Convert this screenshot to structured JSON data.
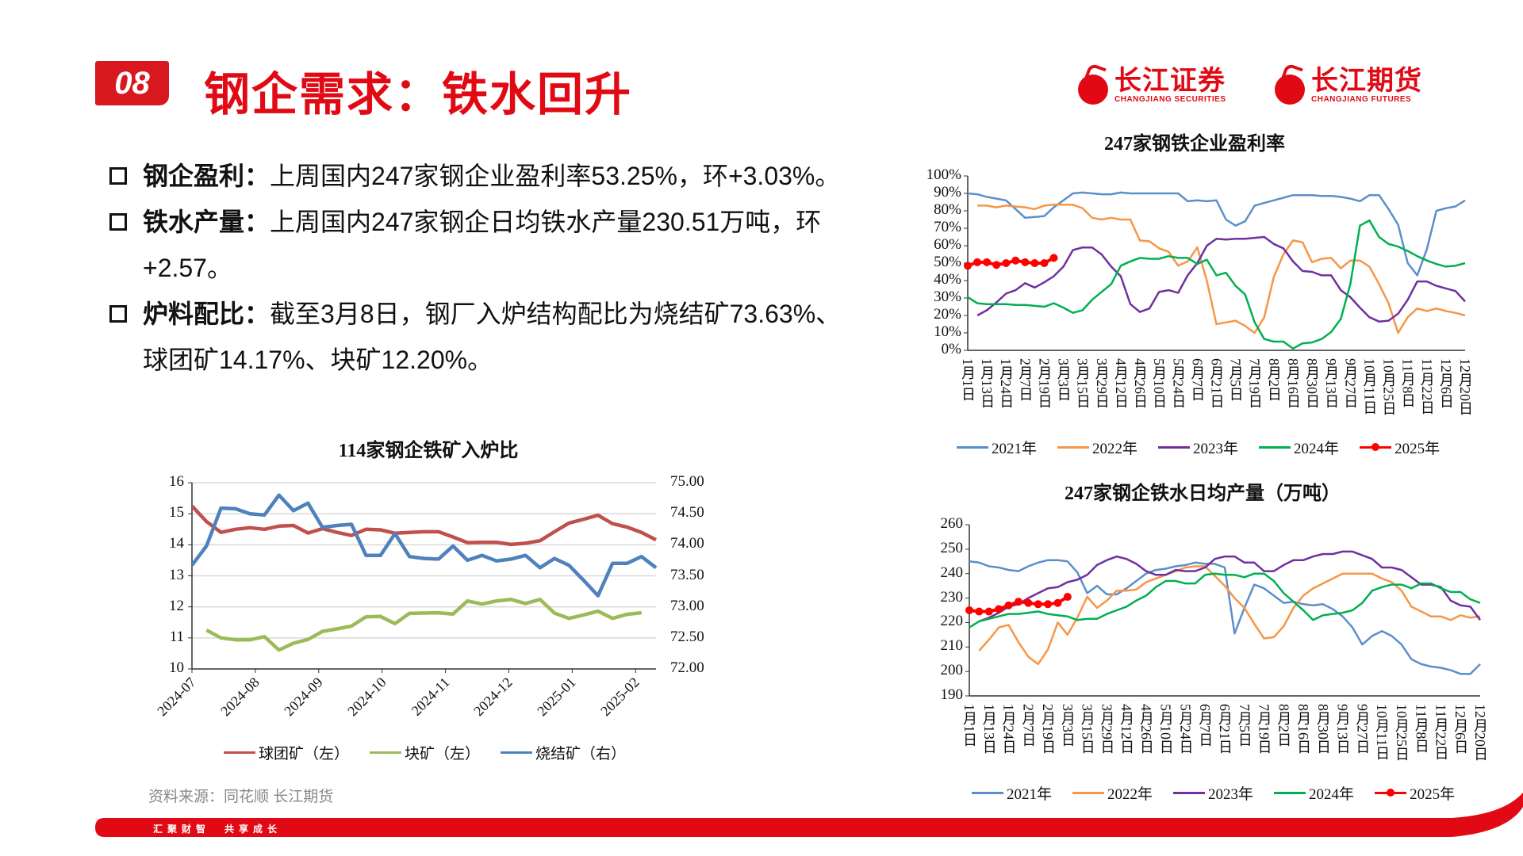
{
  "header": {
    "badge": "08",
    "title": "钢企需求：铁水回升",
    "logos": [
      {
        "cn": "长江证券",
        "en": "CHANGJIANG SECURITIES"
      },
      {
        "cn": "长江期货",
        "en": "CHANGJIANG FUTURES"
      }
    ]
  },
  "bullets": [
    {
      "label": "钢企盈利：",
      "lines": [
        "上周国内247家钢企业盈利率53.25%，环+3.03%。"
      ]
    },
    {
      "label": "铁水产量：",
      "lines": [
        "上周国内247家钢企日均铁水产量230.51万吨，环",
        "+2.57。"
      ]
    },
    {
      "label": "炉料配比：",
      "lines": [
        "截至3月8日，钢厂入炉结构配比为烧结矿73.63%、",
        "球团矿14.17%、块矿12.20%。"
      ]
    }
  ],
  "source": "资料来源：同花顺 长江期货",
  "footer": {
    "slogan": "汇聚财智　共享成长"
  },
  "colors": {
    "brand": "#e10a14",
    "y2021": "#5b8fcb",
    "y2022": "#f79646",
    "y2023": "#7030a0",
    "y2024": "#00b050",
    "y2025": "#ff0000",
    "pellet": "#c0504d",
    "lump": "#9bbb59",
    "sinter": "#4f81bd"
  },
  "chart_data": [
    {
      "type": "line",
      "title": "114家钢企铁矿入炉比",
      "x_tick_labels": [
        "2024-07",
        "2024-08",
        "2024-09",
        "2024-10",
        "2024-11",
        "2024-12",
        "2025-01",
        "2025-02"
      ],
      "ylim_left": [
        10,
        16
      ],
      "yticks_left": [
        "10",
        "11",
        "12",
        "13",
        "14",
        "15",
        "16"
      ],
      "ylim_right": [
        72,
        75
      ],
      "yticks_right": [
        "72.00",
        "72.50",
        "73.00",
        "73.50",
        "74.00",
        "74.50",
        "75.00"
      ],
      "grid": true,
      "legend": "bottom",
      "series": [
        {
          "name": "球团矿（左）",
          "axis": "left",
          "color": "#c0504d",
          "values": [
            15.25,
            14.75,
            14.4,
            14.5,
            14.55,
            14.5,
            14.6,
            14.62,
            14.38,
            14.52,
            14.4,
            14.3,
            14.5,
            14.48,
            14.37,
            14.4,
            14.42,
            14.42,
            14.25,
            14.07,
            14.08,
            14.08,
            14.01,
            14.05,
            14.13,
            14.42,
            14.7,
            14.82,
            14.95,
            14.68,
            14.57,
            14.4,
            14.16
          ]
        },
        {
          "name": "块矿（左）",
          "axis": "left",
          "color": "#9bbb59",
          "values": [
            null,
            11.25,
            11.0,
            10.94,
            10.94,
            11.04,
            10.61,
            10.83,
            10.95,
            11.21,
            11.29,
            11.38,
            11.68,
            11.69,
            11.46,
            11.79,
            11.8,
            11.81,
            11.77,
            12.19,
            12.09,
            12.19,
            12.24,
            12.11,
            12.24,
            11.8,
            11.63,
            11.74,
            11.86,
            11.63,
            11.76,
            11.81,
            null
          ]
        },
        {
          "name": "烧结矿（右）",
          "axis": "right",
          "color": "#4f81bd",
          "values": [
            73.67,
            73.98,
            74.59,
            74.58,
            74.5,
            74.48,
            74.8,
            74.55,
            74.67,
            74.28,
            74.31,
            74.33,
            73.83,
            73.83,
            74.18,
            73.81,
            73.78,
            73.77,
            73.98,
            73.75,
            73.83,
            73.74,
            73.77,
            73.83,
            73.63,
            73.78,
            73.67,
            73.43,
            73.18,
            73.7,
            73.7,
            73.81,
            73.63
          ]
        }
      ]
    },
    {
      "type": "line",
      "title": "247家钢铁企业盈利率",
      "x_tick_labels": [
        "1月1日",
        "1月13日",
        "1月24日",
        "2月7日",
        "2月19日",
        "3月3日",
        "3月15日",
        "3月29日",
        "4月12日",
        "4月26日",
        "5月10日",
        "5月24日",
        "6月7日",
        "6月21日",
        "7月5日",
        "7月19日",
        "8月2日",
        "8月16日",
        "8月30日",
        "9月13日",
        "9月27日",
        "10月11日",
        "10月25日",
        "11月8日",
        "11月22日",
        "12月6日",
        "12月20日"
      ],
      "ylim": [
        0,
        100
      ],
      "yticks": [
        "0%",
        "10%",
        "20%",
        "30%",
        "40%",
        "50%",
        "60%",
        "70%",
        "80%",
        "90%",
        "100%"
      ],
      "grid": false,
      "legend": "bottom",
      "series": [
        {
          "name": "2021年",
          "color": "#5b8fcb",
          "values": [
            90,
            89.5,
            88,
            87,
            86,
            81,
            76,
            76.5,
            77,
            82,
            86,
            90,
            90.5,
            90,
            89.5,
            89.5,
            90.5,
            90,
            90,
            90,
            90,
            90,
            90,
            85.5,
            86,
            85.5,
            86,
            75,
            71.5,
            74,
            83,
            84.5,
            86,
            87.5,
            89,
            89,
            89,
            88.5,
            88.5,
            88,
            87,
            85.5,
            89,
            89,
            81,
            72,
            50,
            43,
            58,
            80,
            81.5,
            82.5,
            86
          ]
        },
        {
          "name": "2022年",
          "color": "#f79646",
          "values": [
            null,
            83,
            83,
            82,
            83,
            82.5,
            82,
            81,
            83,
            83.5,
            83.5,
            83.5,
            81.5,
            76,
            75,
            76,
            75,
            75,
            63,
            62.5,
            58.5,
            56.5,
            48.5,
            51,
            59,
            40,
            15,
            16,
            17,
            14,
            10,
            19,
            42,
            55,
            63,
            62,
            50.5,
            52.5,
            53,
            47,
            51.5,
            51.5,
            48,
            38,
            27,
            10,
            19,
            24,
            22.5,
            24,
            22.5,
            21.5,
            20
          ]
        },
        {
          "name": "2023年",
          "color": "#7030a0",
          "values": [
            null,
            20,
            23,
            27.5,
            32.5,
            34.5,
            38.5,
            36,
            39,
            42.5,
            48,
            57.5,
            59,
            59,
            55,
            48,
            42.5,
            26.5,
            22,
            24,
            33.5,
            34.5,
            33,
            43,
            50,
            60,
            64,
            63.5,
            64,
            64,
            64.5,
            65,
            61,
            58.5,
            51,
            45.5,
            45,
            43,
            43,
            34.5,
            30.5,
            24.5,
            19,
            16.5,
            17,
            21,
            29,
            39.5,
            39.5,
            37,
            35.5,
            34,
            28
          ]
        },
        {
          "name": "2024年",
          "color": "#00b050",
          "values": [
            30.5,
            27,
            26.5,
            26.5,
            26.5,
            26,
            26,
            25.5,
            25,
            27,
            24.5,
            21.5,
            23,
            29,
            33.5,
            38,
            48.5,
            51,
            53,
            52.5,
            52.5,
            54,
            53,
            53,
            49.5,
            52,
            43,
            44.5,
            37,
            32,
            16,
            6.5,
            5,
            5,
            1,
            4,
            4.5,
            6.5,
            10.5,
            18,
            38,
            71.5,
            74.5,
            65,
            61,
            59.5,
            57,
            54,
            51.5,
            49.5,
            48,
            48.5,
            50
          ]
        },
        {
          "name": "2025年",
          "color": "#ff0000",
          "markers": true,
          "values": [
            48.5,
            50.5,
            50.5,
            49,
            50,
            51.5,
            50.5,
            50,
            50,
            53
          ]
        }
      ]
    },
    {
      "type": "line",
      "title": "247家钢企铁水日均产量（万吨）",
      "x_tick_labels": [
        "1月1日",
        "1月13日",
        "1月24日",
        "2月7日",
        "2月19日",
        "3月3日",
        "3月15日",
        "3月29日",
        "4月12日",
        "4月26日",
        "5月10日",
        "5月24日",
        "6月7日",
        "6月21日",
        "7月5日",
        "7月19日",
        "8月2日",
        "8月16日",
        "8月30日",
        "9月13日",
        "9月27日",
        "10月11日",
        "10月25日",
        "11月8日",
        "11月22日",
        "12月6日",
        "12月20日"
      ],
      "ylim": [
        190,
        260
      ],
      "yticks": [
        "190",
        "200",
        "210",
        "220",
        "230",
        "240",
        "250",
        "260"
      ],
      "grid": false,
      "legend": "bottom",
      "series": [
        {
          "name": "2021年",
          "color": "#5b8fcb",
          "values": [
            245,
            244.5,
            243,
            242.5,
            241.5,
            241,
            243,
            244.5,
            245.5,
            245.5,
            245,
            240.5,
            232,
            235,
            231.5,
            231.5,
            234,
            237,
            240,
            241.5,
            242,
            243,
            243.5,
            244.5,
            244,
            244,
            242.5,
            215.5,
            226,
            235.5,
            234,
            231,
            228,
            228.5,
            227.5,
            227,
            227.5,
            225.5,
            222.5,
            218,
            211,
            214.5,
            216.5,
            214.5,
            211,
            205,
            203,
            202,
            201.5,
            200.5,
            199,
            199,
            203
          ]
        },
        {
          "name": "2022年",
          "color": "#f79646",
          "values": [
            null,
            208.5,
            213,
            218,
            219,
            212,
            206,
            203,
            209,
            220,
            215,
            222,
            230.5,
            226,
            229,
            233,
            233,
            233.5,
            236.5,
            238,
            239.5,
            241,
            242.5,
            243,
            243,
            239,
            235,
            230,
            226,
            219.5,
            213.5,
            214,
            218.5,
            226,
            231,
            234,
            236,
            238,
            240,
            240,
            240,
            240,
            238,
            236.5,
            233,
            226.5,
            224.5,
            222.5,
            222.5,
            221,
            223,
            222,
            222.5
          ]
        },
        {
          "name": "2023年",
          "color": "#7030a0",
          "values": [
            null,
            220.5,
            222,
            224,
            226.5,
            227.5,
            230,
            232,
            234,
            234.5,
            236.5,
            237.5,
            239.5,
            243.5,
            245.5,
            247,
            246,
            244,
            241,
            239.5,
            239.5,
            241.5,
            241,
            241,
            242.5,
            246,
            247,
            247,
            244.5,
            244.5,
            241,
            241,
            243.5,
            245.5,
            245.5,
            247,
            248,
            248,
            249,
            249,
            247.5,
            246,
            242.5,
            242.5,
            241.5,
            238.5,
            235.5,
            235.5,
            234.5,
            229,
            227,
            226.5,
            221
          ]
        },
        {
          "name": "2024年",
          "color": "#00b050",
          "values": [
            218,
            220.5,
            221.5,
            222.5,
            223.5,
            223.5,
            224,
            224.5,
            223.5,
            223,
            222.5,
            221,
            221.5,
            221.5,
            223.5,
            225,
            226.5,
            229,
            231,
            234.5,
            237,
            237,
            236,
            236,
            239.5,
            240,
            239.5,
            239.5,
            238.5,
            240,
            240,
            237,
            232,
            228.5,
            225,
            221,
            223,
            223.5,
            224,
            225,
            228,
            233,
            234.5,
            235.5,
            235.5,
            234,
            236,
            236,
            234,
            232.5,
            232.5,
            229.5,
            228
          ]
        },
        {
          "name": "2025年",
          "color": "#ff0000",
          "markers": true,
          "values": [
            225,
            224.5,
            224.5,
            225.5,
            227,
            228.5,
            228,
            227.5,
            227.5,
            228,
            230.5
          ]
        }
      ]
    }
  ]
}
